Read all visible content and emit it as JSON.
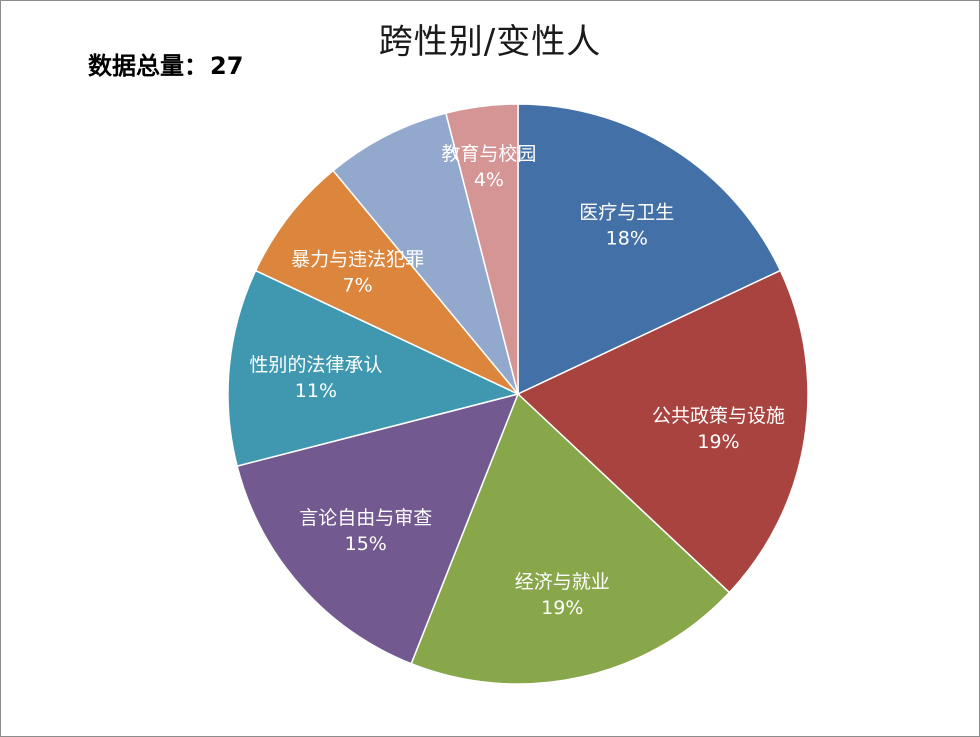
{
  "total": {
    "label": "数据总量：",
    "value": "27"
  },
  "chart_data": {
    "type": "pie",
    "title": "跨性别/变性人",
    "start_angle_deg": 0,
    "direction": "clockwise",
    "slices": [
      {
        "label": "医疗与卫生",
        "value": 18,
        "display": "18%",
        "color": "#4470a8"
      },
      {
        "label": "公共政策与设施",
        "value": 19,
        "display": "19%",
        "color": "#a9433f"
      },
      {
        "label": "经济与就业",
        "value": 19,
        "display": "19%",
        "color": "#88a64a"
      },
      {
        "label": "言论自由与审查",
        "value": 15,
        "display": "15%",
        "color": "#725a91"
      },
      {
        "label": "性别的法律承认",
        "value": 11,
        "display": "11%",
        "color": "#3f98b0"
      },
      {
        "label": "暴力与违法犯罪",
        "value": 7,
        "display": "7%",
        "color": "#db853d"
      },
      {
        "label": "",
        "value": 7,
        "display": "",
        "color": "#92a9cd"
      },
      {
        "label": "教育与校园",
        "value": 4,
        "display": "4%",
        "color": "#d49594"
      }
    ]
  }
}
